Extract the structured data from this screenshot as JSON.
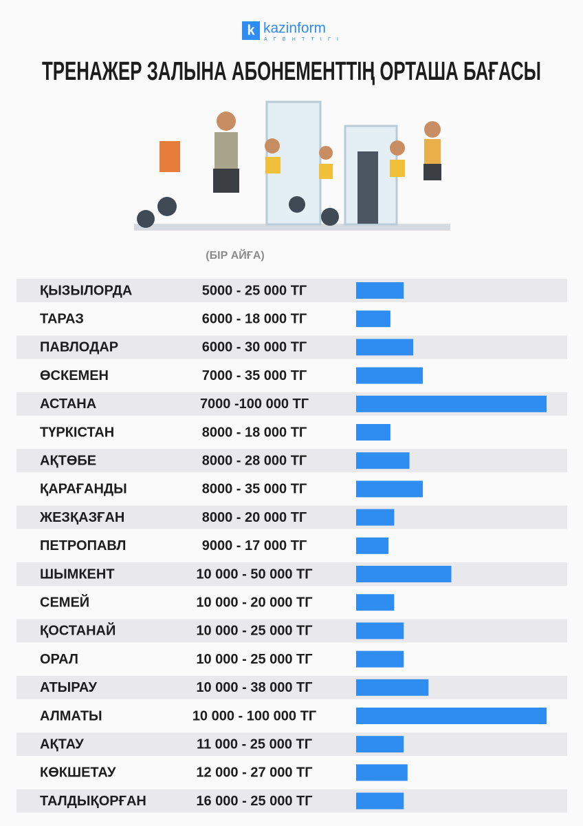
{
  "logo": {
    "name": "kazinform",
    "letter": "k",
    "sub": "АГЕНТТІГІ"
  },
  "chart_data": {
    "type": "bar",
    "orientation": "horizontal",
    "title": "ТРЕНАЖЕР ЗАЛЫНА АБОНЕМЕНТТІҢ ОРТАША БАҒАСЫ",
    "subtitle": "(БІР АЙҒА)",
    "categories": [
      "ҚЫЗЫЛОРДА",
      "ТАРАЗ",
      "ПАВЛОДАР",
      "ӨСКЕМЕН",
      "АСТАНА",
      "ТҮРКІСТАН",
      "АҚТӨБЕ",
      "ҚАРАҒАНДЫ",
      "ЖЕЗҚАЗҒАН",
      "ПЕТРОПАВЛ",
      "ШЫМКЕНТ",
      "СЕМЕЙ",
      "ҚОСТАНАЙ",
      "ОРАЛ",
      "АТЫРАУ",
      "АЛМАТЫ",
      "АҚТАУ",
      "КӨКШЕТАУ",
      "ТАЛДЫҚОРҒАН"
    ],
    "values": [
      25000,
      18000,
      30000,
      35000,
      100000,
      18000,
      28000,
      35000,
      20000,
      17000,
      50000,
      20000,
      25000,
      25000,
      38000,
      100000,
      25000,
      27000,
      25000
    ],
    "value_labels": [
      "5000 - 25 000 ТГ",
      "6000 - 18 000 ТГ",
      "6000 - 30 000 ТГ",
      "7000 - 35 000 ТГ",
      "7000 -100 000 ТГ",
      "8000 - 18 000 ТГ",
      "8000 - 28 000 ТГ",
      "8000 - 35 000 ТГ",
      "8000 - 20 000 ТГ",
      "9000 - 17 000 ТГ",
      "10 000 - 50 000 ТГ",
      "10 000 - 20 000 ТГ",
      "10 000 - 25 000 ТГ",
      "10 000 - 25 000 ТГ",
      "10 000 - 38 000 ТГ",
      "10 000 - 100 000 ТГ",
      "11 000 - 25 000 ТГ",
      "12 000 - 27 000 ТГ",
      "16 000 - 25 000 ТГ"
    ],
    "color": "#2f8cf0",
    "xlim": [
      0,
      100000
    ]
  }
}
